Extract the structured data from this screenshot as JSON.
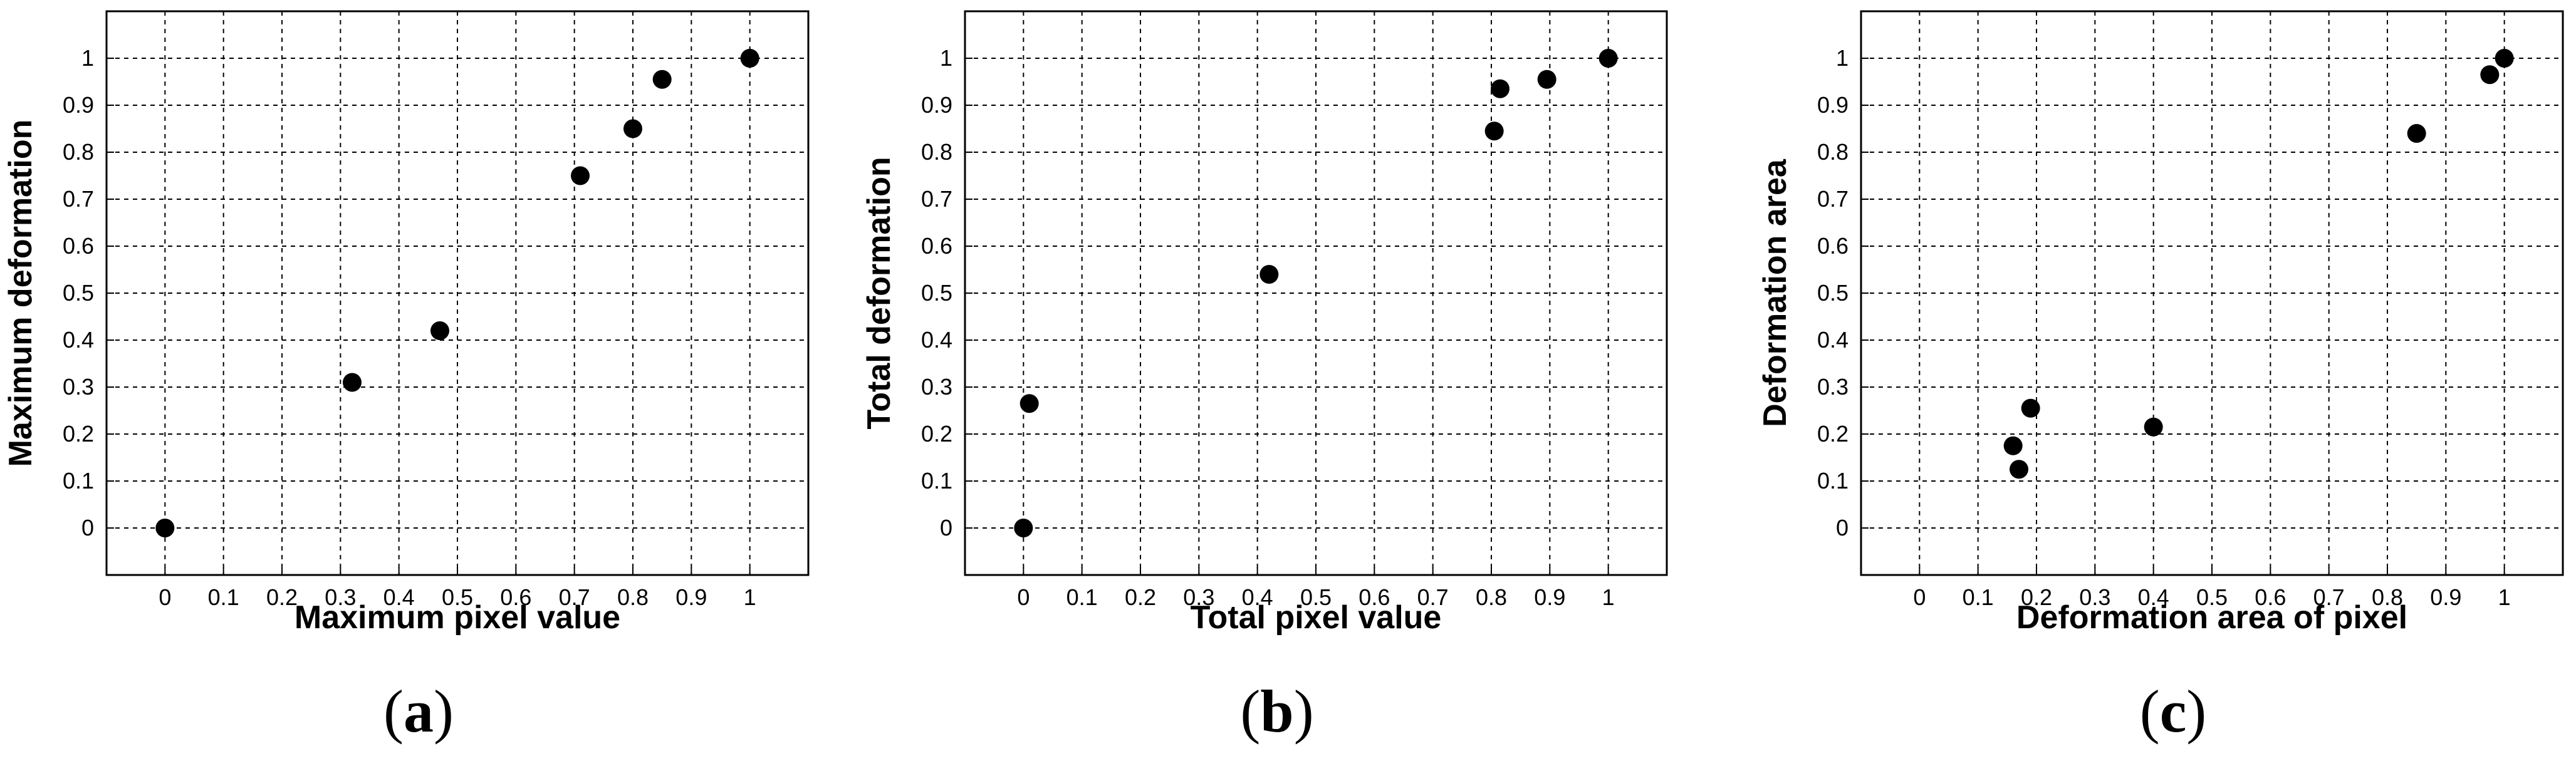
{
  "chart_data": [
    {
      "type": "scatter",
      "panel_label": "(a)",
      "xlabel": "Maximum pixel value",
      "ylabel": "Maximum deformation",
      "xlim": [
        -0.1,
        1.1
      ],
      "ylim": [
        -0.1,
        1.1
      ],
      "xticks": [
        "0",
        "0.1",
        "0.2",
        "0.3",
        "0.4",
        "0.5",
        "0.6",
        "0.7",
        "0.8",
        "0.9",
        "1"
      ],
      "yticks": [
        "0",
        "0.1",
        "0.2",
        "0.3",
        "0.4",
        "0.5",
        "0.6",
        "0.7",
        "0.8",
        "0.9",
        "1"
      ],
      "grid": true,
      "marker_color": "#000000",
      "points": [
        {
          "x": 0.0,
          "y": 0.0
        },
        {
          "x": 0.32,
          "y": 0.31
        },
        {
          "x": 0.47,
          "y": 0.42
        },
        {
          "x": 0.71,
          "y": 0.75
        },
        {
          "x": 0.8,
          "y": 0.85
        },
        {
          "x": 0.85,
          "y": 0.955
        },
        {
          "x": 1.0,
          "y": 1.0
        }
      ]
    },
    {
      "type": "scatter",
      "panel_label": "(b)",
      "xlabel": "Total pixel value",
      "ylabel": "Total deformation",
      "xlim": [
        -0.1,
        1.1
      ],
      "ylim": [
        -0.1,
        1.1
      ],
      "xticks": [
        "0",
        "0.1",
        "0.2",
        "0.3",
        "0.4",
        "0.5",
        "0.6",
        "0.7",
        "0.8",
        "0.9",
        "1"
      ],
      "yticks": [
        "0",
        "0.1",
        "0.2",
        "0.3",
        "0.4",
        "0.5",
        "0.6",
        "0.7",
        "0.8",
        "0.9",
        "1"
      ],
      "grid": true,
      "marker_color": "#000000",
      "points": [
        {
          "x": 0.0,
          "y": 0.0
        },
        {
          "x": 0.01,
          "y": 0.265
        },
        {
          "x": 0.42,
          "y": 0.54
        },
        {
          "x": 0.805,
          "y": 0.845
        },
        {
          "x": 0.815,
          "y": 0.935
        },
        {
          "x": 0.895,
          "y": 0.955
        },
        {
          "x": 1.0,
          "y": 1.0
        }
      ]
    },
    {
      "type": "scatter",
      "panel_label": "(c)",
      "xlabel": "Deformation area of pixel",
      "ylabel": "Deformation area",
      "xlim": [
        -0.1,
        1.1
      ],
      "ylim": [
        -0.1,
        1.1
      ],
      "xticks": [
        "0",
        "0.1",
        "0.2",
        "0.3",
        "0.4",
        "0.5",
        "0.6",
        "0.7",
        "0.8",
        "0.9",
        "1"
      ],
      "yticks": [
        "0",
        "0.1",
        "0.2",
        "0.3",
        "0.4",
        "0.5",
        "0.6",
        "0.7",
        "0.8",
        "0.9",
        "1"
      ],
      "grid": true,
      "marker_color": "#000000",
      "points": [
        {
          "x": 0.16,
          "y": 0.175
        },
        {
          "x": 0.17,
          "y": 0.125
        },
        {
          "x": 0.19,
          "y": 0.255
        },
        {
          "x": 0.4,
          "y": 0.215
        },
        {
          "x": 0.85,
          "y": 0.84
        },
        {
          "x": 0.975,
          "y": 0.965
        },
        {
          "x": 1.0,
          "y": 1.0
        }
      ]
    }
  ]
}
